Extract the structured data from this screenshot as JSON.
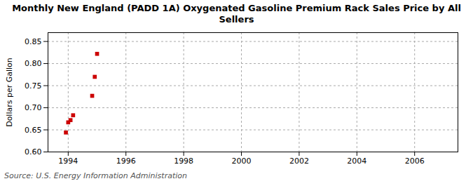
{
  "chart_data": {
    "type": "scatter",
    "title": "Monthly New England (PADD 1A) Oxygenated Gasoline Premium Rack Sales Price by All\nSellers",
    "ylabel": "Dollars per Gallon",
    "source": "Source: U.S. Energy Information Administration",
    "x": [
      1993.92,
      1994.0,
      1994.08,
      1994.17,
      1994.83,
      1994.92,
      1995.0
    ],
    "values": [
      0.644,
      0.667,
      0.672,
      0.683,
      0.727,
      0.77,
      0.822
    ],
    "color": "#cc0000",
    "marker": "square",
    "xlim": [
      1993.3,
      2007.5
    ],
    "ylim": [
      0.6,
      0.87
    ],
    "xticks": [
      1994,
      1996,
      1998,
      2000,
      2002,
      2004,
      2006
    ],
    "yticks": [
      {
        "value": 0.6,
        "label": "0.60"
      },
      0.65,
      {
        "value": 0.7,
        "label": "0.70"
      },
      0.75,
      {
        "value": 0.8,
        "label": "0.80"
      },
      0.85
    ],
    "grid": true
  }
}
